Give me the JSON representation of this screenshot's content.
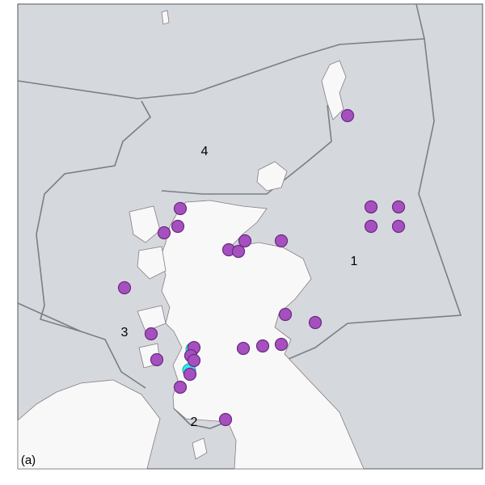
{
  "map": {
    "region_labels": [
      "1",
      "2",
      "3",
      "4"
    ],
    "panel_label": "(a)"
  }
}
